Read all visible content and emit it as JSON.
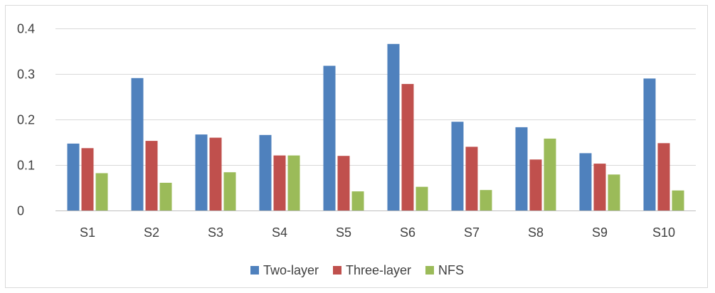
{
  "chart_data": {
    "type": "bar",
    "title": "",
    "xlabel": "",
    "ylabel": "",
    "categories": [
      "S1",
      "S2",
      "S3",
      "S4",
      "S5",
      "S6",
      "S7",
      "S8",
      "S9",
      "S10"
    ],
    "ylim": [
      0,
      0.4
    ],
    "yticks": [
      0,
      0.1,
      0.2,
      0.3,
      0.4
    ],
    "ytick_labels": [
      "0",
      "0.1",
      "0.2",
      "0.3",
      "0.4"
    ],
    "grid": true,
    "legend_position": "bottom",
    "series": [
      {
        "name": "Two-layer",
        "color": "#4f81bd",
        "values": [
          0.147,
          0.291,
          0.167,
          0.166,
          0.318,
          0.366,
          0.195,
          0.183,
          0.126,
          0.29
        ]
      },
      {
        "name": "Three-layer",
        "color": "#c0504d",
        "values": [
          0.137,
          0.153,
          0.16,
          0.121,
          0.12,
          0.278,
          0.14,
          0.112,
          0.103,
          0.148
        ]
      },
      {
        "name": "NFS",
        "color": "#9bbb59",
        "values": [
          0.082,
          0.061,
          0.084,
          0.121,
          0.042,
          0.052,
          0.045,
          0.158,
          0.079,
          0.044
        ]
      }
    ]
  }
}
